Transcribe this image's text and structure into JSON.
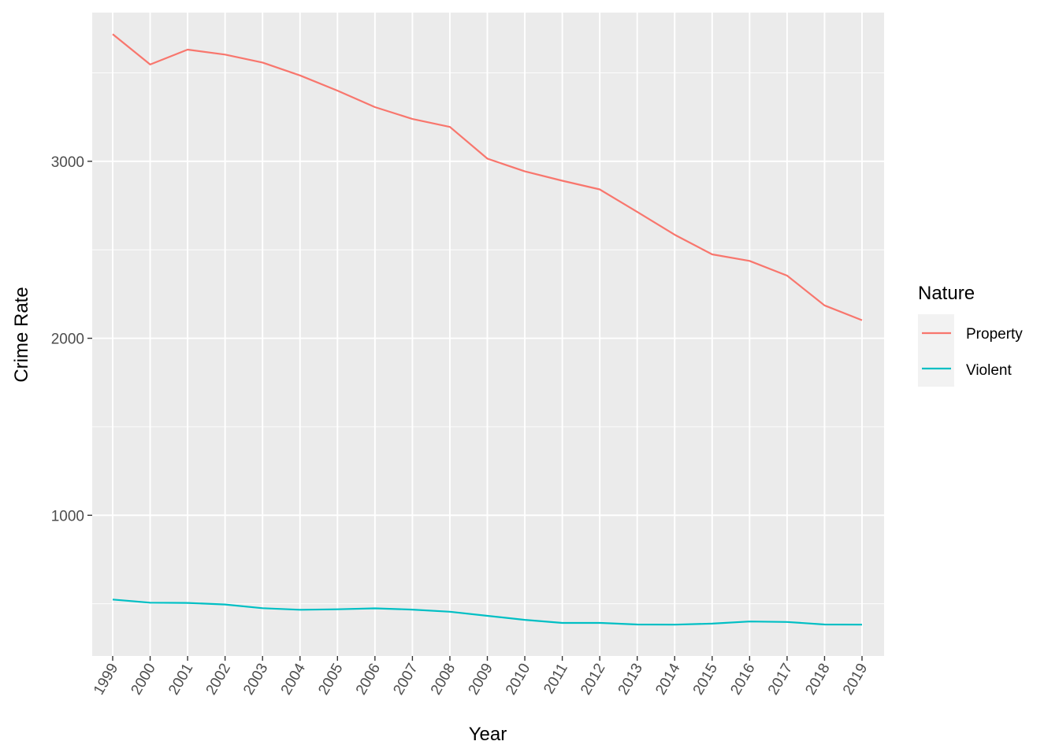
{
  "chart_data": {
    "type": "line",
    "xlabel": "Year",
    "ylabel": "Crime Rate",
    "x": [
      "1999",
      "2000",
      "2001",
      "2002",
      "2003",
      "2004",
      "2005",
      "2006",
      "2007",
      "2008",
      "2009",
      "2010",
      "2011",
      "2012",
      "2013",
      "2014",
      "2015",
      "2016",
      "2017",
      "2018",
      "2019"
    ],
    "ylim": [
      205,
      3840
    ],
    "yticks": [
      1000,
      2000,
      3000
    ],
    "grid": true,
    "legend": {
      "title": "Nature",
      "position": "right"
    },
    "series": [
      {
        "name": "Property",
        "color": "#F8766D",
        "values": [
          3718,
          3547,
          3631,
          3603,
          3558,
          3485,
          3399,
          3306,
          3239,
          3194,
          3015,
          2943,
          2890,
          2841,
          2714,
          2585,
          2474,
          2437,
          2354,
          2186,
          2102
        ]
      },
      {
        "name": "Violent",
        "color": "#00BFC4",
        "values": [
          524,
          506,
          505,
          496,
          475,
          466,
          469,
          474,
          467,
          455,
          432,
          409,
          392,
          392,
          383,
          382,
          388,
          400,
          397,
          383,
          382
        ]
      }
    ]
  }
}
